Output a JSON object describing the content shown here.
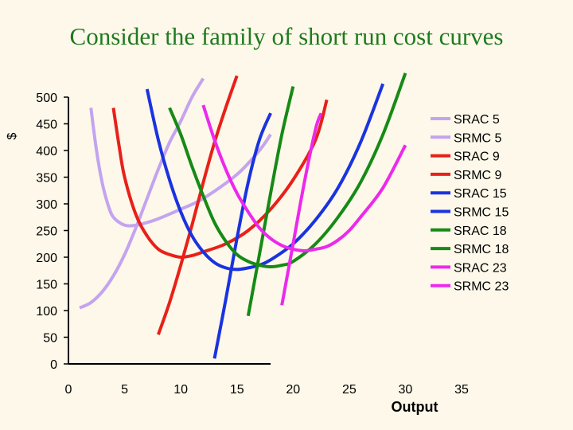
{
  "title": "Consider the family of short run cost curves",
  "colors": {
    "light_purple": "#c4a3f0",
    "red": "#e8201a",
    "blue": "#1a33e0",
    "green": "#168a16",
    "magenta": "#ec29ec",
    "axis": "#000000"
  },
  "chart_data": {
    "type": "line",
    "title": "Consider the family of short run cost curves",
    "xlabel": "Output",
    "ylabel": "$",
    "xlim": [
      0,
      35
    ],
    "ylim": [
      0,
      500
    ],
    "x_ticks": [
      "0",
      "5",
      "10",
      "15",
      "20",
      "25",
      "30",
      "35"
    ],
    "y_ticks": [
      "0",
      "50",
      "100",
      "150",
      "200",
      "250",
      "300",
      "350",
      "400",
      "450",
      "500"
    ],
    "legend_position": "right",
    "series": [
      {
        "name": "SRAC 5",
        "color": "#c4a3f0",
        "x": [
          2,
          2.5,
          3,
          3.5,
          4,
          5,
          6,
          7,
          8,
          10,
          12,
          15,
          17,
          18
        ],
        "y": [
          480,
          400,
          340,
          300,
          275,
          260,
          260,
          265,
          272,
          290,
          310,
          355,
          400,
          430
        ]
      },
      {
        "name": "SRMC 5",
        "color": "#c4a3f0",
        "x": [
          1,
          2,
          3,
          4,
          5,
          6,
          7,
          8,
          9,
          10,
          11,
          12
        ],
        "y": [
          105,
          115,
          135,
          165,
          205,
          255,
          310,
          365,
          415,
          455,
          500,
          535
        ]
      },
      {
        "name": "SRAC 9",
        "color": "#e8201a",
        "x": [
          4,
          4.5,
          5,
          6,
          7,
          8,
          9,
          10,
          11,
          12,
          14,
          16,
          18,
          20,
          22,
          23
        ],
        "y": [
          480,
          410,
          350,
          280,
          240,
          215,
          205,
          200,
          203,
          210,
          225,
          250,
          290,
          345,
          420,
          495
        ]
      },
      {
        "name": "SRMC 9",
        "color": "#e8201a",
        "x": [
          8,
          9,
          10,
          11,
          12,
          13,
          14,
          15
        ],
        "y": [
          55,
          115,
          185,
          260,
          340,
          415,
          480,
          540
        ]
      },
      {
        "name": "SRAC 15",
        "color": "#1a33e0",
        "x": [
          7,
          8,
          9,
          10,
          11,
          12,
          13,
          14,
          15,
          16,
          17,
          18,
          20,
          22,
          24,
          26,
          28
        ],
        "y": [
          515,
          420,
          345,
          285,
          240,
          210,
          190,
          180,
          177,
          180,
          185,
          195,
          225,
          270,
          330,
          415,
          525
        ]
      },
      {
        "name": "SRMC 15",
        "color": "#1a33e0",
        "x": [
          13,
          14,
          15,
          16,
          17,
          18
        ],
        "y": [
          10,
          120,
          235,
          340,
          420,
          470
        ]
      },
      {
        "name": "SRAC 18",
        "color": "#168a16",
        "x": [
          9,
          10,
          11,
          12,
          13,
          14,
          15,
          16,
          17,
          18,
          19,
          20,
          22,
          24,
          26,
          28,
          30
        ],
        "y": [
          480,
          430,
          370,
          315,
          265,
          230,
          205,
          192,
          185,
          182,
          185,
          192,
          225,
          275,
          340,
          430,
          545
        ]
      },
      {
        "name": "SRMC 18",
        "color": "#168a16",
        "x": [
          16,
          17,
          18,
          19,
          20
        ],
        "y": [
          90,
          205,
          320,
          430,
          520
        ]
      },
      {
        "name": "SRAC 23",
        "color": "#ec29ec",
        "x": [
          12,
          13,
          14,
          15,
          16,
          17,
          18,
          19,
          20,
          21,
          22,
          23,
          24,
          25,
          26,
          28,
          30
        ],
        "y": [
          485,
          420,
          365,
          320,
          285,
          255,
          235,
          222,
          215,
          212,
          215,
          220,
          232,
          250,
          275,
          330,
          410
        ]
      },
      {
        "name": "SRMC 23",
        "color": "#ec29ec",
        "x": [
          19,
          20,
          21,
          22,
          22.5
        ],
        "y": [
          110,
          225,
          340,
          440,
          470
        ]
      }
    ]
  }
}
